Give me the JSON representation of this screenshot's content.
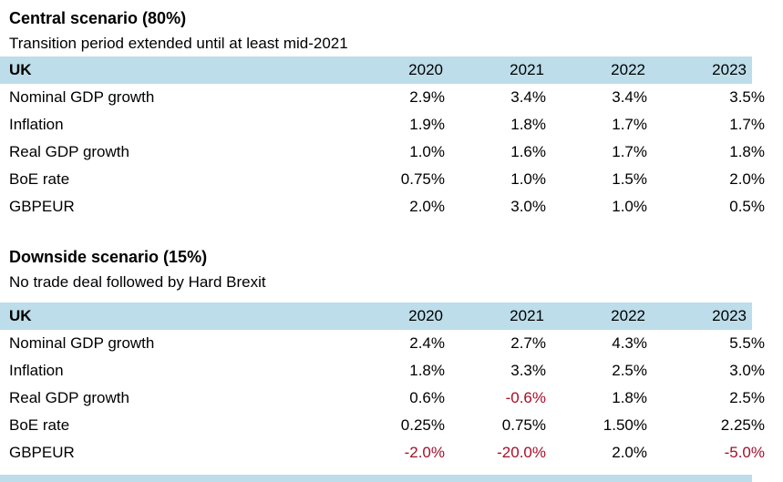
{
  "colors": {
    "header_bg": "#bcdde9",
    "negative": "#a50e28",
    "text": "#000000"
  },
  "sections": [
    {
      "title": "Central scenario (80%)",
      "subtitle": "Transition period extended until at least mid-2021",
      "table": {
        "region_label": "UK",
        "years": [
          "2020",
          "2021",
          "2022",
          "2023"
        ],
        "rows": [
          {
            "label": "Nominal GDP growth",
            "values": [
              "2.9%",
              "3.4%",
              "3.4%",
              "3.5%"
            ]
          },
          {
            "label": "Inflation",
            "values": [
              "1.9%",
              "1.8%",
              "1.7%",
              "1.7%"
            ]
          },
          {
            "label": "Real GDP growth",
            "values": [
              "1.0%",
              "1.6%",
              "1.7%",
              "1.8%"
            ]
          },
          {
            "label": "BoE rate",
            "values": [
              "0.75%",
              "1.0%",
              "1.5%",
              "2.0%"
            ]
          },
          {
            "label": "GBPEUR",
            "values": [
              "2.0%",
              "3.0%",
              "1.0%",
              "0.5%"
            ]
          }
        ]
      }
    },
    {
      "title": "Downside scenario (15%)",
      "subtitle": "No trade deal followed by Hard Brexit",
      "table": {
        "region_label": "UK",
        "years": [
          "2020",
          "2021",
          "2022",
          "2023"
        ],
        "rows": [
          {
            "label": "Nominal GDP growth",
            "values": [
              "2.4%",
              "2.7%",
              "4.3%",
              "5.5%"
            ]
          },
          {
            "label": "Inflation",
            "values": [
              "1.8%",
              "3.3%",
              "2.5%",
              "3.0%"
            ]
          },
          {
            "label": "Real GDP growth",
            "values": [
              "0.6%",
              "-0.6%",
              "1.8%",
              "2.5%"
            ]
          },
          {
            "label": "BoE rate",
            "values": [
              "0.25%",
              "0.75%",
              "1.50%",
              "2.25%"
            ]
          },
          {
            "label": "GBPEUR",
            "values": [
              "-2.0%",
              "-20.0%",
              "2.0%",
              "-5.0%"
            ]
          }
        ]
      }
    }
  ]
}
